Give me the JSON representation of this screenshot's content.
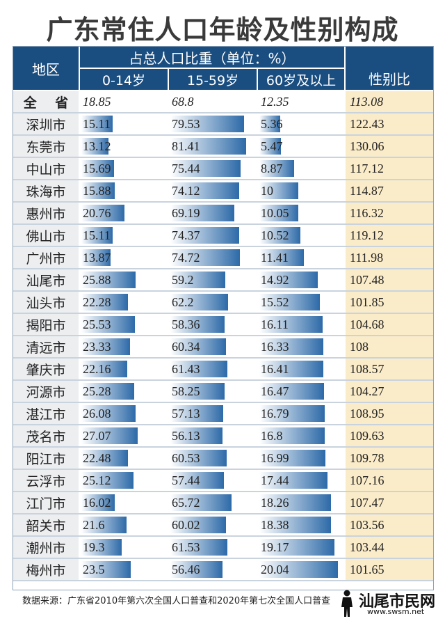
{
  "title": "广东常住人口年龄及性别构成",
  "header": {
    "region": "地区",
    "group": "占总人口比重（单位：%）",
    "col1": "0-14岁",
    "col2": "15-59岁",
    "col3": "60岁及以上",
    "ratio": "性别比"
  },
  "source": "数据来源：广东省2010年第六次全国人口普查和2020年第七次全国人口普查",
  "watermark": {
    "logo": "汕尾市民网",
    "url": "www.swsm.net"
  },
  "colors": {
    "header": "#1a4d80",
    "bar": "#2d6aa8",
    "ratio_bg": "#fbecc9",
    "region_bg": "#eceef0"
  },
  "chart_data": {
    "type": "table",
    "columns": [
      "地区",
      "0-14岁",
      "15-59岁",
      "60岁及以上",
      "性别比"
    ],
    "rows": [
      {
        "region": "全 省",
        "age0_14": "18.85",
        "age15_59": "68.8",
        "age60": "12.35",
        "ratio": "113.08"
      },
      {
        "region": "深圳市",
        "age0_14": "15.11",
        "age15_59": "79.53",
        "age60": "5.36",
        "ratio": "122.43"
      },
      {
        "region": "东莞市",
        "age0_14": "13.12",
        "age15_59": "81.41",
        "age60": "5.47",
        "ratio": "130.06"
      },
      {
        "region": "中山市",
        "age0_14": "15.69",
        "age15_59": "75.44",
        "age60": "8.87",
        "ratio": "117.12"
      },
      {
        "region": "珠海市",
        "age0_14": "15.88",
        "age15_59": "74.12",
        "age60": "10",
        "ratio": "114.87"
      },
      {
        "region": "惠州市",
        "age0_14": "20.76",
        "age15_59": "69.19",
        "age60": "10.05",
        "ratio": "116.32"
      },
      {
        "region": "佛山市",
        "age0_14": "15.11",
        "age15_59": "74.37",
        "age60": "10.52",
        "ratio": "119.12"
      },
      {
        "region": "广州市",
        "age0_14": "13.87",
        "age15_59": "74.72",
        "age60": "11.41",
        "ratio": "111.98"
      },
      {
        "region": "汕尾市",
        "age0_14": "25.88",
        "age15_59": "59.2",
        "age60": "14.92",
        "ratio": "107.48"
      },
      {
        "region": "汕头市",
        "age0_14": "22.28",
        "age15_59": "62.2",
        "age60": "15.52",
        "ratio": "101.85"
      },
      {
        "region": "揭阳市",
        "age0_14": "25.53",
        "age15_59": "58.36",
        "age60": "16.11",
        "ratio": "104.68"
      },
      {
        "region": "清远市",
        "age0_14": "23.33",
        "age15_59": "60.34",
        "age60": "16.33",
        "ratio": "108"
      },
      {
        "region": "肇庆市",
        "age0_14": "22.16",
        "age15_59": "61.43",
        "age60": "16.41",
        "ratio": "108.57"
      },
      {
        "region": "河源市",
        "age0_14": "25.28",
        "age15_59": "58.25",
        "age60": "16.47",
        "ratio": "104.27"
      },
      {
        "region": "湛江市",
        "age0_14": "26.08",
        "age15_59": "57.13",
        "age60": "16.79",
        "ratio": "108.95"
      },
      {
        "region": "茂名市",
        "age0_14": "27.07",
        "age15_59": "56.13",
        "age60": "16.8",
        "ratio": "109.63"
      },
      {
        "region": "阳江市",
        "age0_14": "22.48",
        "age15_59": "60.53",
        "age60": "16.99",
        "ratio": "109.78"
      },
      {
        "region": "云浮市",
        "age0_14": "25.12",
        "age15_59": "57.44",
        "age60": "17.44",
        "ratio": "107.16"
      },
      {
        "region": "江门市",
        "age0_14": "16.02",
        "age15_59": "65.72",
        "age60": "18.26",
        "ratio": "107.47"
      },
      {
        "region": "韶关市",
        "age0_14": "21.6",
        "age15_59": "60.02",
        "age60": "18.38",
        "ratio": "103.56"
      },
      {
        "region": "潮州市",
        "age0_14": "19.3",
        "age15_59": "61.53",
        "age60": "19.17",
        "ratio": "103.44"
      },
      {
        "region": "梅州市",
        "age0_14": "23.5",
        "age15_59": "56.46",
        "age60": "20.04",
        "ratio": "101.65"
      }
    ]
  }
}
